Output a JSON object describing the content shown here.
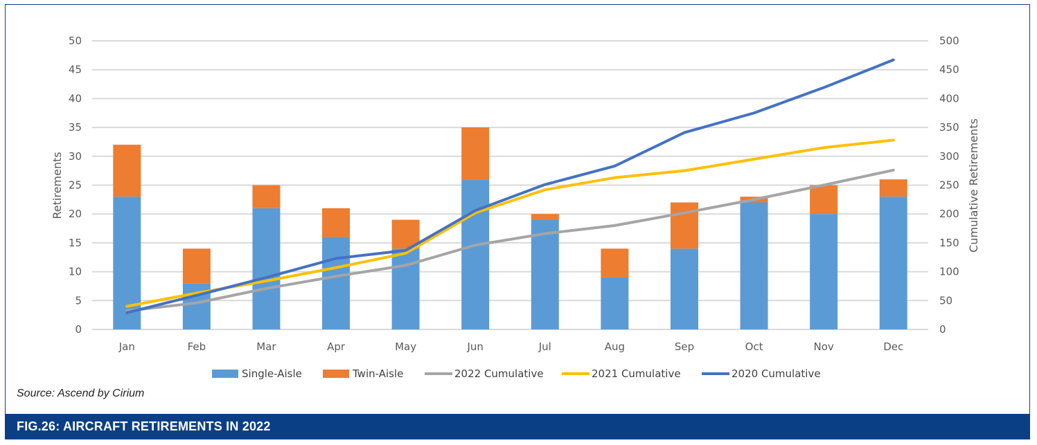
{
  "chart_data": {
    "type": "bar",
    "stacked": true,
    "categories": [
      "Jan",
      "Feb",
      "Mar",
      "Apr",
      "May",
      "Jun",
      "Jul",
      "Aug",
      "Sep",
      "Oct",
      "Nov",
      "Dec"
    ],
    "series": [
      {
        "name": "Single-Aisle",
        "axis": "left",
        "kind": "bar",
        "color": "#5b9bd5",
        "values": [
          23,
          8,
          21,
          16,
          14,
          26,
          19,
          9,
          14,
          22,
          20,
          23
        ]
      },
      {
        "name": "Twin-Aisle",
        "axis": "left",
        "kind": "bar",
        "color": "#ed7d31",
        "values": [
          9,
          6,
          4,
          5,
          5,
          9,
          1,
          5,
          8,
          1,
          5,
          3
        ]
      },
      {
        "name": "2022 Cumulative",
        "axis": "right",
        "kind": "line",
        "color": "#a5a5a5",
        "values": [
          32,
          46,
          71,
          92,
          111,
          146,
          166,
          180,
          202,
          225,
          250,
          276
        ]
      },
      {
        "name": "2021 Cumulative",
        "axis": "right",
        "kind": "line",
        "color": "#ffc000",
        "values": [
          40,
          63,
          84,
          107,
          132,
          202,
          242,
          263,
          275,
          295,
          315,
          328
        ]
      },
      {
        "name": "2020 Cumulative",
        "axis": "right",
        "kind": "line",
        "color": "#4472c4",
        "values": [
          29,
          59,
          90,
          123,
          137,
          206,
          251,
          283,
          341,
          375,
          419,
          467
        ]
      }
    ],
    "ylabel": "Retirements",
    "y2label": "Cumulative Retirements",
    "ylim": [
      0,
      50
    ],
    "y2lim": [
      0,
      500
    ],
    "yticks": [
      "0",
      "5",
      "10",
      "15",
      "20",
      "25",
      "30",
      "35",
      "40",
      "45",
      "50"
    ],
    "y2ticks": [
      "0",
      "50",
      "100",
      "150",
      "200",
      "250",
      "300",
      "350",
      "400",
      "450",
      "500"
    ],
    "legend_position": "bottom",
    "grid": true
  },
  "source": "Source: Ascend by Cirium",
  "caption": "FIG.26: AIRCRAFT RETIREMENTS IN 2022"
}
